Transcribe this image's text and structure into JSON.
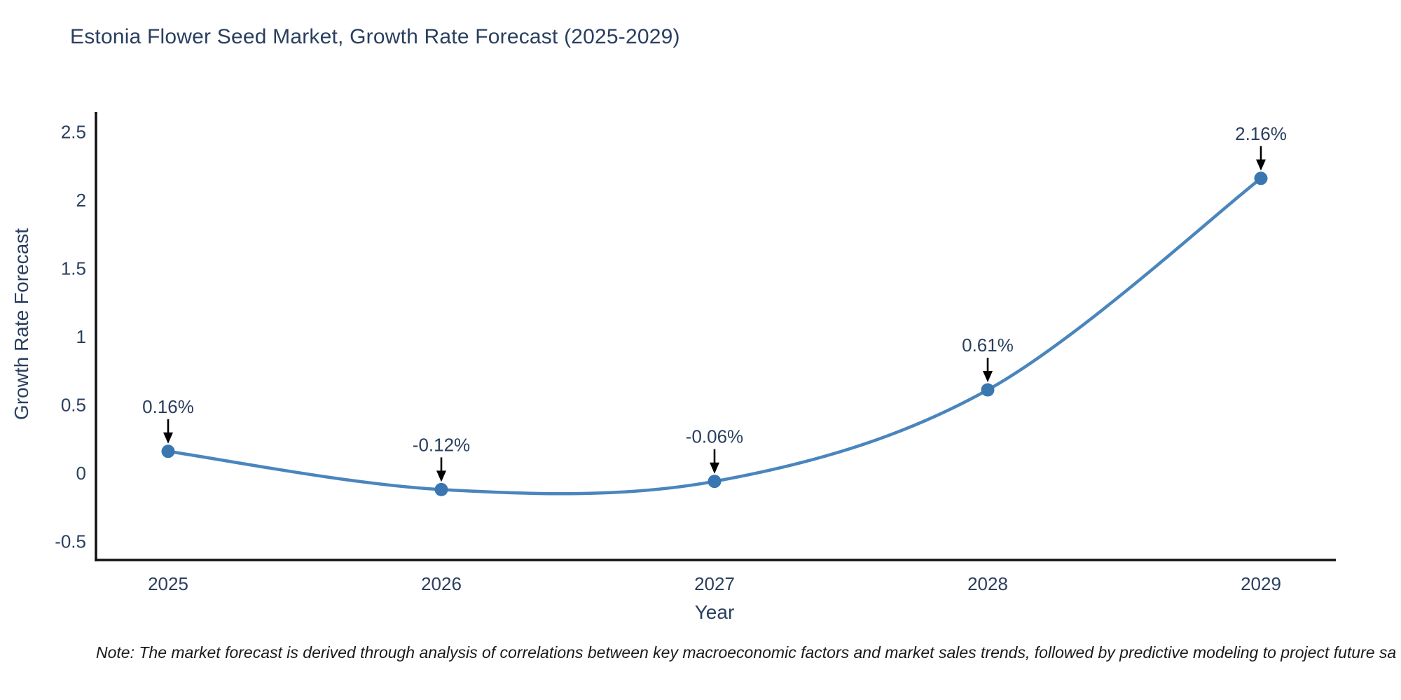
{
  "title": "Estonia Flower Seed Market, Growth Rate Forecast (2025-2029)",
  "note": "Note: The market forecast is derived through analysis of correlations between key macroeconomic factors and market sales trends, followed by predictive modeling to project future sa",
  "chart_data": {
    "type": "line",
    "title": "Estonia Flower Seed Market, Growth Rate Forecast (2025-2029)",
    "categories": [
      "2025",
      "2026",
      "2027",
      "2028",
      "2029"
    ],
    "values": [
      0.16,
      -0.12,
      -0.06,
      0.61,
      2.16
    ],
    "point_labels": [
      "0.16%",
      "-0.12%",
      "-0.06%",
      "0.61%",
      "2.16%"
    ],
    "series_name": "Growth Rate Forecast",
    "xlabel": "Year",
    "ylabel": "Growth Rate Forecast",
    "ylim": [
      -0.64,
      2.62
    ],
    "yticks": [
      -0.5,
      0,
      0.5,
      1,
      1.5,
      2,
      2.5
    ],
    "ytick_labels": [
      "-0.5",
      "0",
      "0.5",
      "1",
      "1.5",
      "2",
      "2.5"
    ],
    "grid": false,
    "legend_position": "none",
    "line_shape": "spline",
    "marker": "circle",
    "annotation_arrows": true,
    "colors": {
      "line": "#4a85bd",
      "marker": "#3a76af",
      "axis": "#111111",
      "tick_text": "#2a3f5f",
      "annotation_text": "#2a3f5f",
      "annotation_arrow": "#000000",
      "title_text": "#2a3f5f",
      "note_text": "#1a1a1a",
      "background": "#ffffff"
    }
  }
}
